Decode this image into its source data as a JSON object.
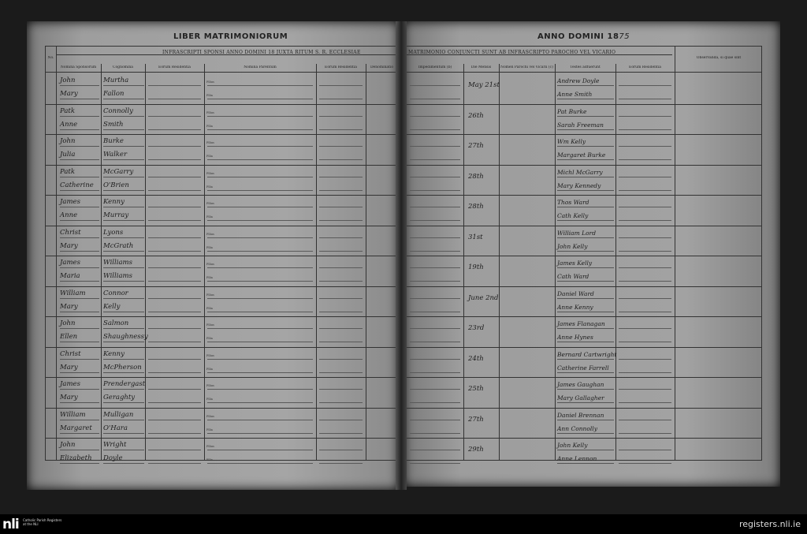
{
  "left_page": {
    "title": "LIBER MATRIMONIORUM",
    "band": "INFRASCRIPTI SPONSI ANNO DOMINI 18      JUXTA RITUM S. R. ECCLESIAE",
    "no_label": "No.",
    "headers": [
      "Nomina Sponsorum",
      "Cognomina",
      "Eorum Residentia",
      "Nomina Parentum",
      "Eorum Residentia",
      "Denominatio"
    ]
  },
  "right_page": {
    "title": "ANNO DOMINI 18",
    "year_written": "75",
    "band": "MATRIMONIO CONJUNCTI SUNT AB INFRASCRIPTO PAROCHO VEL VICARIO",
    "headers": [
      "Impedimentum (b)",
      "Die Mensis",
      "Nomen Parochi vel Vicarii (c)",
      "Testes adfuerunt",
      "Eorum Residentia",
      "Observanda, si quae sint"
    ]
  },
  "parent_labels": [
    "Filius",
    "Filia"
  ],
  "entries": [
    {
      "groom": "John",
      "groom_surname": "Murtha",
      "bride": "Mary",
      "bride_surname": "Fallon",
      "date": "May 21st",
      "witness1": "Andrew Doyle",
      "witness2": "Anne Smith"
    },
    {
      "groom": "Patk",
      "groom_surname": "Connolly",
      "bride": "Anne",
      "bride_surname": "Smith",
      "date": "26th",
      "witness1": "Pat Burke",
      "witness2": "Sarah Freeman"
    },
    {
      "groom": "John",
      "groom_surname": "Burke",
      "bride": "Julia",
      "bride_surname": "Walker",
      "date": "27th",
      "witness1": "Wm Kelly",
      "witness2": "Margaret Burke"
    },
    {
      "groom": "Patk",
      "groom_surname": "McGarry",
      "bride": "Catherine",
      "bride_surname": "O'Brien",
      "date": "28th",
      "witness1": "Michl McGarry",
      "witness2": "Mary Kennedy"
    },
    {
      "groom": "James",
      "groom_surname": "Kenny",
      "bride": "Anne",
      "bride_surname": "Murray",
      "date": "28th",
      "witness1": "Thos Ward",
      "witness2": "Cath Kelly"
    },
    {
      "groom": "Christ",
      "groom_surname": "Lyons",
      "bride": "Mary",
      "bride_surname": "McGrath",
      "date": "31st",
      "witness1": "William Lord",
      "witness2": "John Kelly"
    },
    {
      "groom": "James",
      "groom_surname": "Williams",
      "bride": "Maria",
      "bride_surname": "Williams",
      "date": "19th",
      "witness1": "James Kelly",
      "witness2": "Cath Ward"
    },
    {
      "groom": "William",
      "groom_surname": "Connor",
      "bride": "Mary",
      "bride_surname": "Kelly",
      "date": "June 2nd",
      "witness1": "Daniel Ward",
      "witness2": "Anne Kenny"
    },
    {
      "groom": "John",
      "groom_surname": "Salmon",
      "bride": "Ellen",
      "bride_surname": "Shaughnessy",
      "date": "23rd",
      "witness1": "James Flanagan",
      "witness2": "Anne Hynes"
    },
    {
      "groom": "Christ",
      "groom_surname": "Kenny",
      "bride": "Mary",
      "bride_surname": "McPherson",
      "date": "24th",
      "witness1": "Bernard Cartwright",
      "witness2": "Catherine Farrell"
    },
    {
      "groom": "James",
      "groom_surname": "Prendergast",
      "bride": "Mary",
      "bride_surname": "Geraghty",
      "date": "25th",
      "witness1": "James Gaughan",
      "witness2": "Mary Gallagher"
    },
    {
      "groom": "William",
      "groom_surname": "Mulligan",
      "bride": "Margaret",
      "bride_surname": "O'Hara",
      "date": "27th",
      "witness1": "Daniel Brennan",
      "witness2": "Ann Connolly"
    },
    {
      "groom": "John",
      "groom_surname": "Wright",
      "bride": "Elizabeth",
      "bride_surname": "Doyle",
      "date": "29th",
      "witness1": "John Kelly",
      "witness2": "Anne Lennon"
    }
  ],
  "footer": {
    "logo": "nli",
    "logo_text": "Catholic Parish Registers at the NLI",
    "site": "registers.nli.ie"
  }
}
